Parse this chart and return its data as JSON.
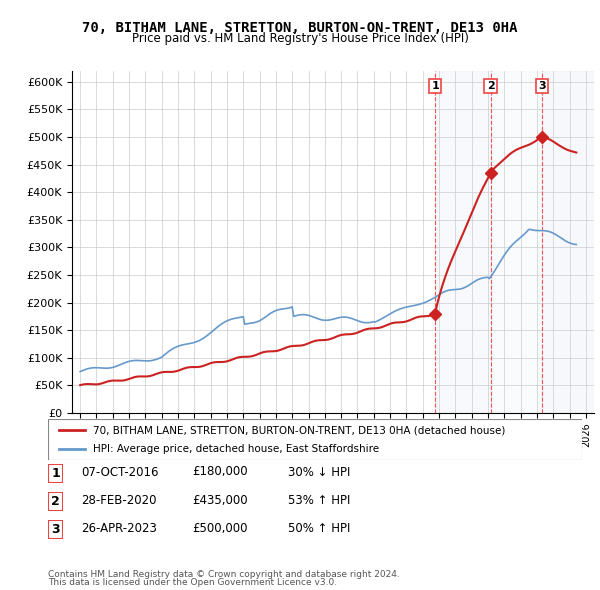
{
  "title": "70, BITHAM LANE, STRETTON, BURTON-ON-TRENT, DE13 0HA",
  "subtitle": "Price paid vs. HM Land Registry's House Price Index (HPI)",
  "legend_line1": "70, BITHAM LANE, STRETTON, BURTON-ON-TRENT, DE13 0HA (detached house)",
  "legend_line2": "HPI: Average price, detached house, East Staffordshire",
  "footer1": "Contains HM Land Registry data © Crown copyright and database right 2024.",
  "footer2": "This data is licensed under the Open Government Licence v3.0.",
  "transactions": [
    {
      "num": "1",
      "date": "07-OCT-2016",
      "price": "£180,000",
      "change": "30% ↓ HPI",
      "year": 2016.77
    },
    {
      "num": "2",
      "date": "28-FEB-2020",
      "price": "£435,000",
      "change": "53% ↑ HPI",
      "year": 2020.16
    },
    {
      "num": "3",
      "date": "26-APR-2023",
      "price": "£500,000",
      "change": "50% ↑ HPI",
      "year": 2023.32
    }
  ],
  "sale_prices": [
    180000,
    435000,
    500000
  ],
  "sale_years": [
    2016.77,
    2020.16,
    2023.32
  ],
  "hpi_color": "#6699cc",
  "price_color": "#cc2222",
  "marker_color": "#cc2222",
  "vline_color": "#ee4444",
  "background_color": "#ffffff",
  "grid_color": "#cccccc",
  "ylim": [
    0,
    620000
  ],
  "yticks": [
    0,
    50000,
    100000,
    150000,
    200000,
    250000,
    300000,
    350000,
    400000,
    450000,
    500000,
    550000,
    600000
  ],
  "xlim_start": 1994.5,
  "xlim_end": 2026.5
}
